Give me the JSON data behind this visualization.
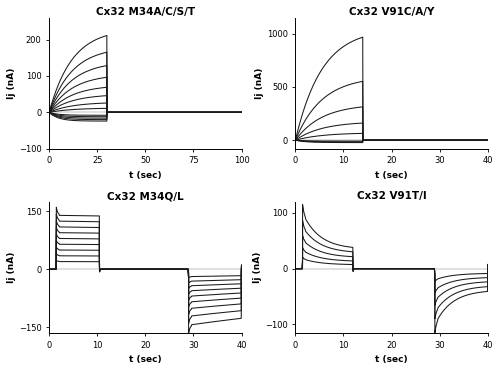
{
  "panels": [
    {
      "title": "Cx32 M34A/C/S/T",
      "ylabel": "Ij (nA)",
      "xlabel": "t (sec)",
      "xlim": [
        0,
        100
      ],
      "ylim": [
        -100,
        260
      ],
      "yticks": [
        -100,
        0,
        100,
        200
      ],
      "xticks": [
        0,
        25,
        50,
        75,
        100
      ],
      "pulse_end": 30,
      "peak_pos": [
        230,
        180,
        140,
        105,
        75,
        50,
        28,
        12
      ],
      "peak_neg": [
        -8,
        -12,
        -16,
        -20,
        -24
      ],
      "type": "reverse_gating",
      "rise_tau": 12
    },
    {
      "title": "Cx32 V91C/A/Y",
      "ylabel": "Ij (nA)",
      "xlabel": "t (sec)",
      "xlim": [
        0,
        40
      ],
      "ylim": [
        -80,
        1150
      ],
      "yticks": [
        0,
        500,
        1000
      ],
      "xticks": [
        0,
        10,
        20,
        30,
        40
      ],
      "pulse_end": 14,
      "peak_pos": [
        1050,
        600,
        340,
        175,
        70
      ],
      "peak_neg": [
        -8,
        -15,
        -22
      ],
      "type": "reverse_gating",
      "rise_tau": 5.5
    },
    {
      "title": "Cx32 M34Q/L",
      "ylabel": "Ij (nA)",
      "xlabel": "t (sec)",
      "xlim": [
        0,
        40
      ],
      "ylim": [
        -165,
        175
      ],
      "yticks": [
        -150,
        0,
        150
      ],
      "xticks": [
        0,
        10,
        20,
        30,
        40
      ],
      "pulse_start1": 1.5,
      "pulse_end1": 10.5,
      "pulse_start2": 29.0,
      "pulse_end2": 40.0,
      "peak_pos": [
        140,
        125,
        110,
        95,
        80,
        65,
        50,
        35,
        20
      ],
      "steady_pos": [
        130,
        115,
        100,
        88,
        73,
        60,
        46,
        32,
        18
      ],
      "peak_neg": [
        -145,
        -122,
        -102,
        -85,
        -70,
        -56,
        -43,
        -31,
        -19
      ],
      "steady_neg": [
        -55,
        -48,
        -40,
        -33,
        -27,
        -21,
        -16,
        -11,
        -7
      ],
      "type": "normal_gating",
      "spike_tau": 0.3,
      "inact_tau": 50.0
    },
    {
      "title": "Cx32 V91T/I",
      "ylabel": "Ij (nA)",
      "xlabel": "t (sec)",
      "xlim": [
        0,
        40
      ],
      "ylim": [
        -115,
        120
      ],
      "yticks": [
        -100,
        0,
        100
      ],
      "xticks": [
        0,
        10,
        20,
        30,
        40
      ],
      "pulse_start1": 1.5,
      "pulse_end1": 12.0,
      "pulse_start2": 29.0,
      "pulse_end2": 40.0,
      "peak_pos": [
        100,
        75,
        52,
        33,
        18
      ],
      "steady_pos": [
        35,
        28,
        20,
        13,
        7
      ],
      "peak_neg": [
        -100,
        -78,
        -57,
        -38,
        -20
      ],
      "steady_neg": [
        -38,
        -30,
        -22,
        -15,
        -8
      ],
      "type": "normal_gating",
      "spike_tau": 0.3,
      "inact_tau": 3.5
    }
  ],
  "line_color": "#1a1a1a",
  "line_width": 0.75,
  "bg_color": "#ffffff",
  "title_fontsize": 7.5,
  "label_fontsize": 6.5,
  "tick_fontsize": 6
}
